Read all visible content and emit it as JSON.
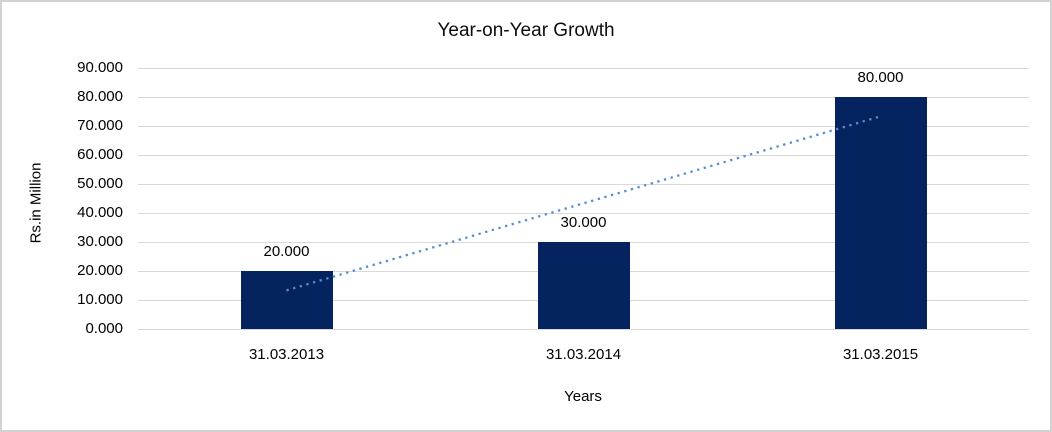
{
  "chart_data": {
    "type": "bar",
    "title": "Year-on-Year Growth",
    "categories": [
      "31.03.2013",
      "31.03.2014",
      "31.03.2015"
    ],
    "values": [
      20,
      30,
      80
    ],
    "value_labels": [
      "20.000",
      "30.000",
      "80.000"
    ],
    "xlabel": "Years",
    "ylabel": "Rs.in Million",
    "ylim": [
      0,
      90
    ],
    "ytick_step": 10,
    "ytick_labels": [
      "0.000",
      "10.000",
      "20.000",
      "30.000",
      "40.000",
      "50.000",
      "60.000",
      "70.000",
      "80.000",
      "90.000"
    ],
    "grid": true,
    "legend": "none",
    "bar_color": "#05235f",
    "gridline_color": "#d9d9d9",
    "trendline": {
      "type": "linear",
      "style": "dotted",
      "color": "#568dd2",
      "start_value": 13.333,
      "end_value": 73.333
    }
  }
}
